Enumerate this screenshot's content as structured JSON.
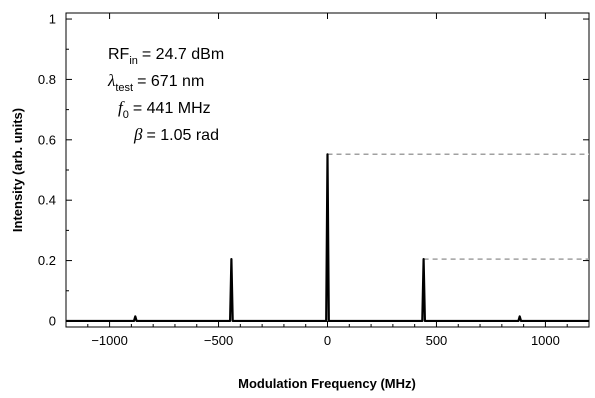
{
  "chart_data": {
    "type": "line",
    "title": "",
    "xlabel": "Modulation Frequency (MHz)",
    "ylabel": "Intensity (arb. units)",
    "xlim": [
      -1200,
      1200
    ],
    "ylim": [
      -0.02,
      1.02
    ],
    "xticks": [
      -1000,
      -500,
      0,
      500,
      1000
    ],
    "xtick_labels": [
      "−1000",
      "−500",
      "0",
      "500",
      "1000"
    ],
    "yticks": [
      0,
      0.2,
      0.4,
      0.6,
      0.8,
      1
    ],
    "ytick_labels": [
      "0",
      "0.2",
      "0.4",
      "0.6",
      "0.8",
      "1"
    ],
    "grid": false,
    "peaks": [
      {
        "x": -882,
        "y": 0.015
      },
      {
        "x": -441,
        "y": 0.205
      },
      {
        "x": 0,
        "y": 0.552
      },
      {
        "x": 441,
        "y": 0.205
      },
      {
        "x": 882,
        "y": 0.015
      }
    ],
    "baseline": 0,
    "reference_lines": [
      {
        "y": 0.552,
        "x_start": 0,
        "x_end": 1200,
        "style": "dashed",
        "color": "#a0a0a0"
      },
      {
        "y": 0.205,
        "x_start": 441,
        "x_end": 1200,
        "style": "dashed",
        "color": "#a0a0a0"
      }
    ],
    "annotations": {
      "rf": {
        "symbol": "RF",
        "sub": "in",
        "value": "= 24.7 dBm"
      },
      "lambda": {
        "symbol": "λ",
        "sub": "test",
        "value": "= 671  nm"
      },
      "f0": {
        "symbol": "f",
        "sub": "0",
        "value": "= 441  MHz"
      },
      "beta": {
        "symbol": "β",
        "sub": "",
        "value": "= 1.05 rad"
      }
    },
    "line_color": "#000000"
  }
}
